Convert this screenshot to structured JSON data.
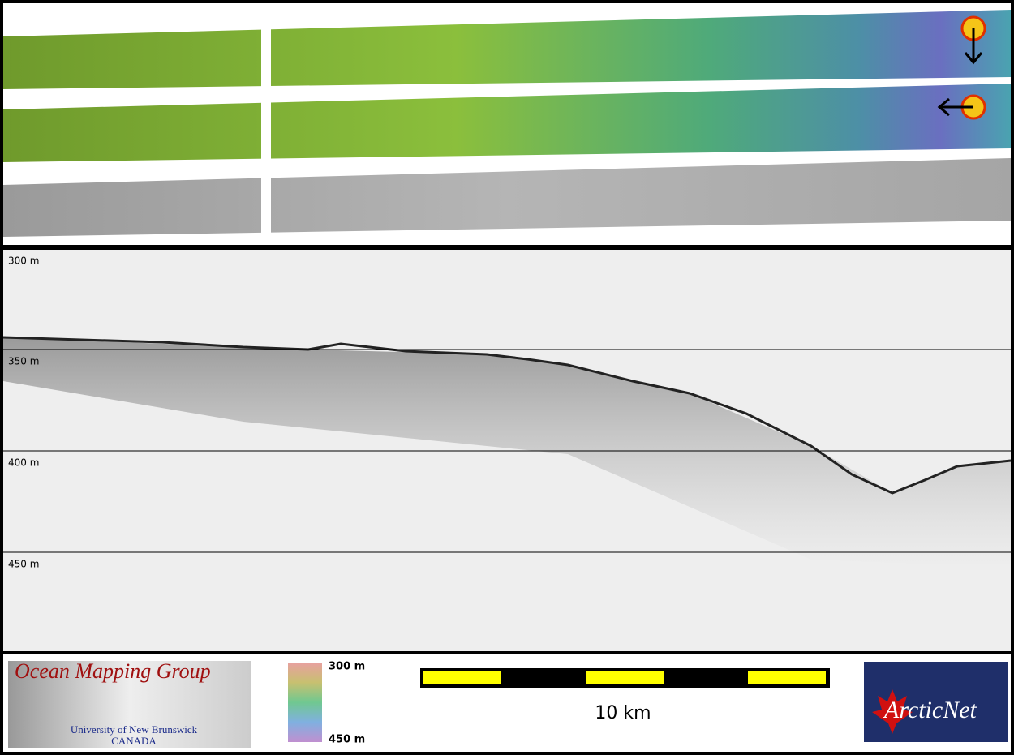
{
  "profile": {
    "depth_labels": [
      "300 m",
      "350 m",
      "400 m",
      "450 m"
    ]
  },
  "legend": {
    "top_label": "300 m",
    "bottom_label": "450 m"
  },
  "scale_bar": {
    "label": "10 km"
  },
  "logos": {
    "omg": {
      "title": "Ocean Mapping Group",
      "line1": "University of New Brunswick",
      "line2": "CANADA"
    },
    "arcticnet": {
      "text": "ArcticNet"
    }
  }
}
